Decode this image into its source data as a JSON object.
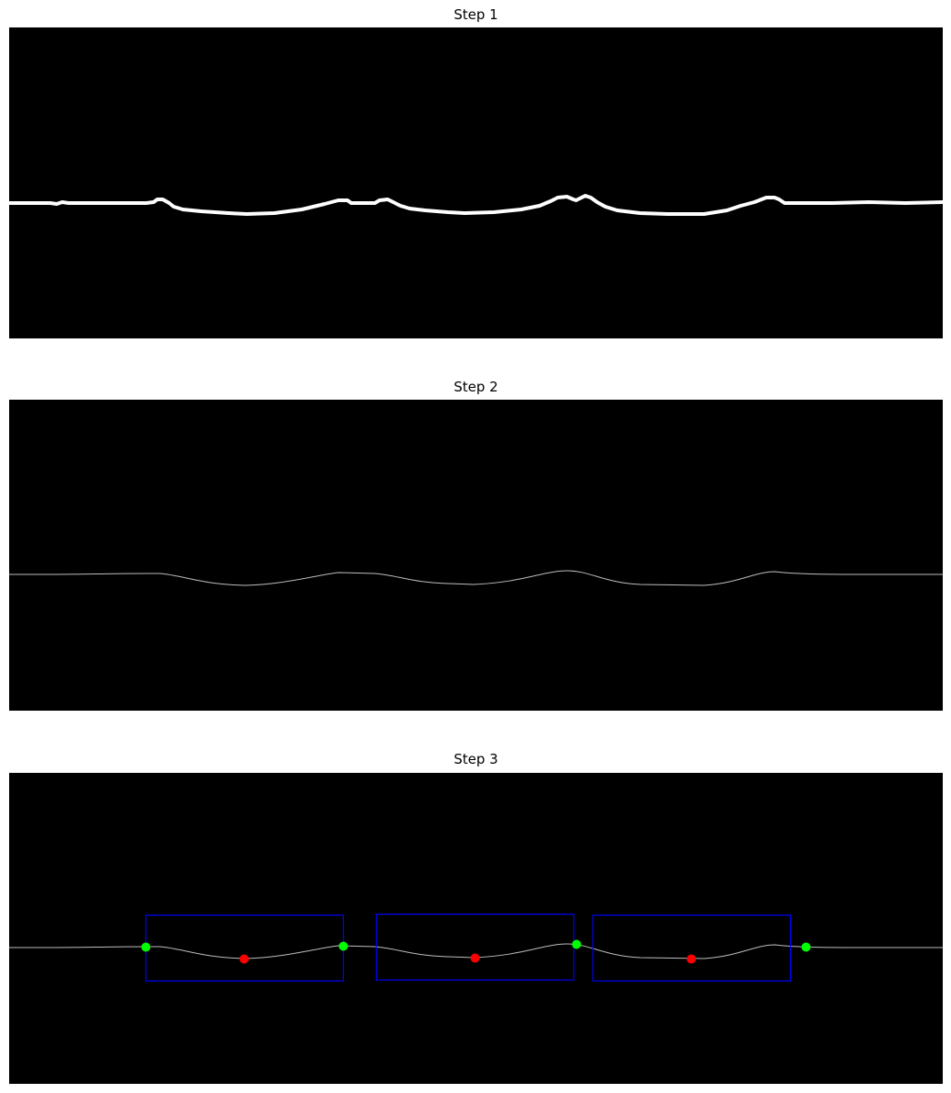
{
  "panels": [
    {
      "title": "Step 1"
    },
    {
      "title": "Step 2"
    },
    {
      "title": "Step 3"
    }
  ],
  "colors": {
    "background": "#000000",
    "curve": "#ffffff",
    "box": "#0000ff",
    "boundary_point": "#00ff00",
    "minimum_point": "#ff0000"
  }
}
